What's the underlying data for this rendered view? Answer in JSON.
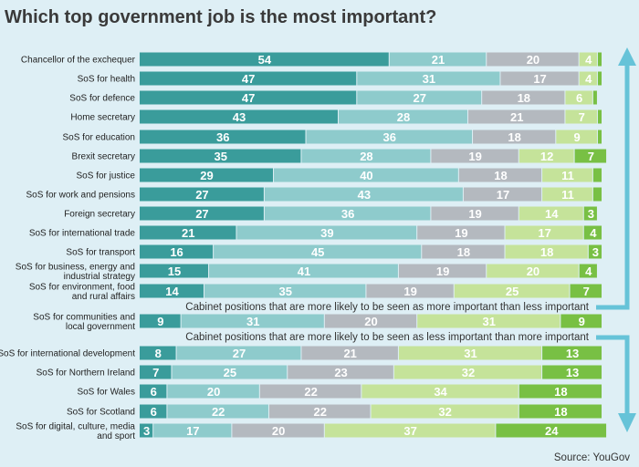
{
  "chart_data": {
    "type": "bar",
    "stacked": true,
    "orientation": "horizontal",
    "title": "Which top government job is the most important?",
    "source": "Source: YouGov",
    "segment_colors": [
      "#3a9c9b",
      "#8ecbcc",
      "#b4b9bf",
      "#c5e39a",
      "#78c044"
    ],
    "categories": [
      "Chancellor of the exchequer",
      "SoS for health",
      "SoS for defence",
      "Home secretary",
      "SoS for education",
      "Brexit secretary",
      "SoS for justice",
      "SoS for work and pensions",
      "Foreign secretary",
      "SoS for international trade",
      "SoS for transport",
      "SoS for business, energy and industrial strategy",
      "SoS for environment, food and rural affairs",
      "SoS for communities and local government",
      "SoS for international development",
      "SoS for Northern Ireland",
      "SoS for Wales",
      "SoS for Scotland",
      "SoS for digital, culture, media and sport"
    ],
    "label_lines": [
      [
        "Chancellor of the exchequer"
      ],
      [
        "SoS for health"
      ],
      [
        "SoS for defence"
      ],
      [
        "Home secretary"
      ],
      [
        "SoS for education"
      ],
      [
        "Brexit secretary"
      ],
      [
        "SoS for justice"
      ],
      [
        "SoS for work and pensions"
      ],
      [
        "Foreign secretary"
      ],
      [
        "SoS for international trade"
      ],
      [
        "SoS for transport"
      ],
      [
        "SoS for business, energy and",
        "industrial strategy"
      ],
      [
        "SoS for environment, food",
        "and rural affairs"
      ],
      [
        "SoS for communities and",
        "local government"
      ],
      [
        "SoS for international development"
      ],
      [
        "SoS for Northern Ireland"
      ],
      [
        "SoS for Wales"
      ],
      [
        "SoS for Scotland"
      ],
      [
        "SoS for digital, culture, media",
        "and sport"
      ]
    ],
    "values": [
      [
        54,
        21,
        20,
        4,
        1
      ],
      [
        47,
        31,
        17,
        4,
        1
      ],
      [
        47,
        27,
        18,
        6,
        1
      ],
      [
        43,
        28,
        21,
        7,
        1
      ],
      [
        36,
        36,
        18,
        9,
        1
      ],
      [
        35,
        28,
        19,
        12,
        7
      ],
      [
        29,
        40,
        18,
        11,
        2
      ],
      [
        27,
        43,
        17,
        11,
        2
      ],
      [
        27,
        36,
        19,
        14,
        3
      ],
      [
        21,
        39,
        19,
        17,
        4
      ],
      [
        16,
        45,
        18,
        18,
        3
      ],
      [
        15,
        41,
        19,
        20,
        4
      ],
      [
        14,
        35,
        19,
        25,
        7
      ],
      [
        9,
        31,
        20,
        31,
        9
      ],
      [
        8,
        27,
        21,
        31,
        13
      ],
      [
        7,
        25,
        23,
        32,
        13
      ],
      [
        6,
        20,
        22,
        34,
        18
      ],
      [
        6,
        22,
        22,
        32,
        18
      ],
      [
        3,
        17,
        20,
        37,
        24
      ]
    ],
    "value_labels": [
      [
        "54",
        "21",
        "20",
        "4",
        ""
      ],
      [
        "47",
        "31",
        "17",
        "4",
        ""
      ],
      [
        "47",
        "27",
        "18",
        "6",
        ""
      ],
      [
        "43",
        "28",
        "21",
        "7",
        ""
      ],
      [
        "36",
        "36",
        "18",
        "9",
        ""
      ],
      [
        "35",
        "28",
        "19",
        "12",
        "7"
      ],
      [
        "29",
        "40",
        "18",
        "11",
        ""
      ],
      [
        "27",
        "43",
        "17",
        "11",
        ""
      ],
      [
        "27",
        "36",
        "19",
        "14",
        "3"
      ],
      [
        "21",
        "39",
        "19",
        "17",
        "4"
      ],
      [
        "16",
        "45",
        "18",
        "18",
        "3"
      ],
      [
        "15",
        "41",
        "19",
        "20",
        "4"
      ],
      [
        "14",
        "35",
        "19",
        "25",
        "7"
      ],
      [
        "9",
        "31",
        "20",
        "31",
        "9"
      ],
      [
        "8",
        "27",
        "21",
        "31",
        "13"
      ],
      [
        "7",
        "25",
        "23",
        "32",
        "13"
      ],
      [
        "6",
        "20",
        "22",
        "34",
        "18"
      ],
      [
        "6",
        "22",
        "22",
        "32",
        "18"
      ],
      [
        "3",
        "17",
        "20",
        "37",
        "24"
      ]
    ],
    "annotations": {
      "more_than_less": "Cabinet positions that are more likely to be seen as more important than less important",
      "less_than_more": "Cabinet positions that are more likely to be seen as less important than more important"
    }
  }
}
